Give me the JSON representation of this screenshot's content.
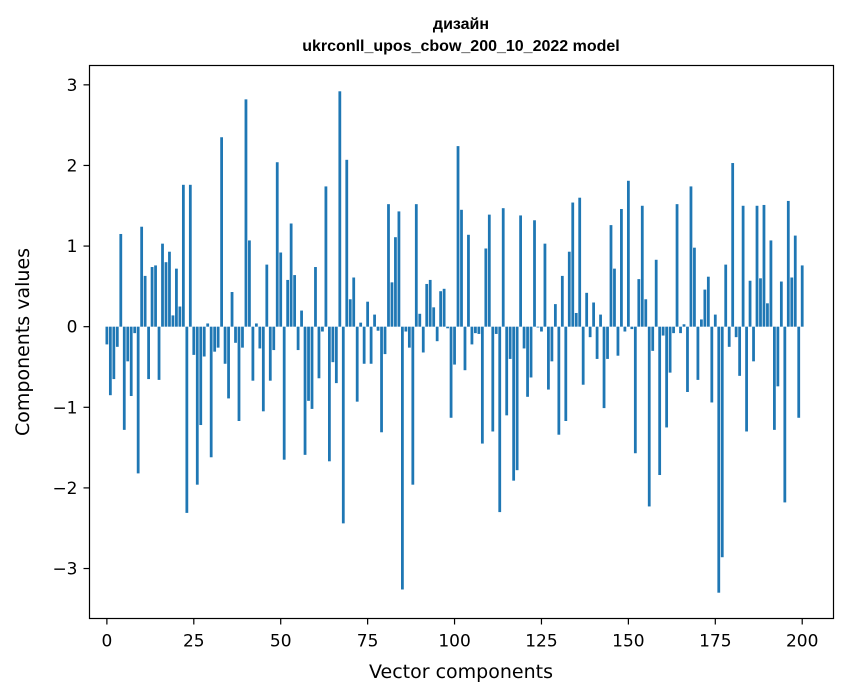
{
  "chart_data": {
    "type": "bar",
    "title_line1": "дизайн",
    "title_line2": "ukrconll_upos_cbow_200_10_2022 model",
    "xlabel": "Vector components",
    "ylabel": "Components values",
    "xlim": [
      -5,
      209
    ],
    "ylim": [
      -3.62,
      3.24
    ],
    "x_ticks": [
      0,
      25,
      50,
      75,
      100,
      125,
      150,
      175,
      200
    ],
    "y_ticks": [
      -3,
      -2,
      -1,
      0,
      1,
      2,
      3
    ],
    "x_tick_labels": [
      "0",
      "25",
      "50",
      "75",
      "100",
      "125",
      "150",
      "175",
      "200"
    ],
    "y_tick_labels": [
      "−3",
      "−2",
      "−1",
      "0",
      "1",
      "2",
      "3"
    ],
    "bar_color": "#1f77b4",
    "grid": false,
    "values": [
      -0.22,
      -0.85,
      -0.65,
      -0.25,
      1.15,
      -1.28,
      -0.43,
      -0.86,
      -0.08,
      -1.82,
      1.24,
      0.63,
      -0.65,
      0.74,
      0.76,
      -0.66,
      1.03,
      0.8,
      0.93,
      0.14,
      0.72,
      0.25,
      1.76,
      -2.31,
      1.76,
      -0.35,
      -1.96,
      -1.22,
      -0.37,
      0.04,
      -1.62,
      -0.31,
      -0.26,
      2.35,
      -0.46,
      -0.89,
      0.43,
      -0.2,
      -1.17,
      -0.26,
      2.82,
      1.07,
      -0.67,
      0.04,
      -0.27,
      -1.05,
      0.77,
      -0.67,
      -0.29,
      2.04,
      0.92,
      -1.65,
      0.58,
      1.28,
      0.64,
      -0.29,
      0.2,
      -1.59,
      -0.92,
      -1.02,
      0.74,
      -0.64,
      -0.06,
      1.74,
      -1.67,
      -0.44,
      -0.7,
      2.92,
      -2.44,
      2.07,
      0.34,
      0.61,
      -0.93,
      0.05,
      -0.46,
      0.31,
      -0.46,
      0.15,
      -0.05,
      -1.31,
      -0.34,
      1.52,
      0.55,
      1.11,
      1.43,
      -3.26,
      -0.06,
      -0.26,
      -1.96,
      1.52,
      0.16,
      -0.32,
      0.53,
      0.58,
      0.24,
      -0.18,
      0.44,
      0.47,
      -0.02,
      -1.13,
      -0.47,
      2.24,
      1.45,
      -0.54,
      1.14,
      -0.22,
      -0.08,
      -0.09,
      -1.45,
      0.97,
      1.39,
      -1.3,
      -0.09,
      -2.3,
      1.47,
      -1.1,
      -0.4,
      -1.91,
      -1.78,
      1.38,
      -0.27,
      -0.87,
      -0.63,
      1.32,
      -0.01,
      -0.06,
      1.03,
      -0.78,
      -0.43,
      0.28,
      -1.34,
      0.63,
      -1.17,
      0.93,
      1.54,
      0.17,
      1.6,
      -0.72,
      0.42,
      -0.13,
      0.3,
      -0.4,
      0.15,
      -1.01,
      -0.4,
      1.26,
      0.72,
      -0.36,
      1.46,
      -0.06,
      1.81,
      -0.03,
      -1.57,
      0.59,
      1.5,
      0.34,
      -2.23,
      -0.3,
      0.83,
      -1.84,
      -0.11,
      -1.25,
      -0.57,
      -0.08,
      1.52,
      -0.08,
      0.03,
      -0.81,
      1.74,
      0.98,
      -0.66,
      0.09,
      0.46,
      0.62,
      -0.94,
      0.15,
      -3.3,
      -2.86,
      0.77,
      -0.25,
      2.03,
      -0.13,
      -0.61,
      1.5,
      -1.3,
      0.57,
      -0.43,
      1.5,
      0.6,
      1.51,
      0.29,
      1.07,
      -1.28,
      -0.74,
      0.56,
      -2.18,
      1.56,
      0.61,
      1.13,
      -1.13,
      0.76
    ]
  }
}
